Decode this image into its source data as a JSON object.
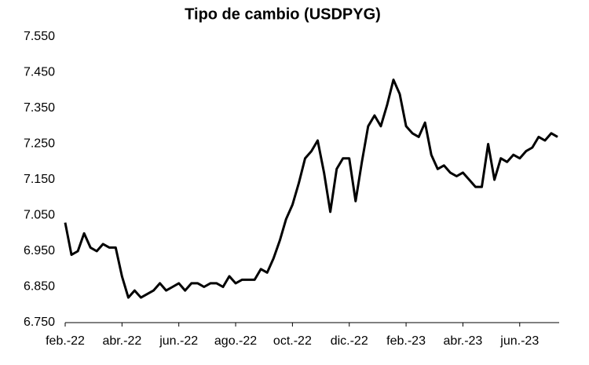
{
  "chart_data": {
    "type": "line",
    "title": "Tipo de cambio (USDPYG)",
    "categories": [
      "feb.-22",
      null,
      null,
      null,
      null,
      null,
      null,
      null,
      null,
      "abr.-22",
      null,
      null,
      null,
      null,
      null,
      null,
      null,
      null,
      "jun.-22",
      null,
      null,
      null,
      null,
      null,
      null,
      null,
      null,
      "ago.-22",
      null,
      null,
      null,
      null,
      null,
      null,
      null,
      null,
      "oct.-22",
      null,
      null,
      null,
      null,
      null,
      null,
      null,
      null,
      "dic.-22",
      null,
      null,
      null,
      null,
      null,
      null,
      null,
      null,
      "feb.-23",
      null,
      null,
      null,
      null,
      null,
      null,
      null,
      null,
      "abr.-23",
      null,
      null,
      null,
      null,
      null,
      null,
      null,
      null,
      "jun.-23",
      null,
      null,
      null,
      null,
      null,
      null
    ],
    "series": [
      {
        "color": "#000000",
        "values": [
          7030,
          6940,
          6950,
          7000,
          6960,
          6950,
          6970,
          6960,
          6960,
          6880,
          6820,
          6840,
          6820,
          6830,
          6840,
          6860,
          6840,
          6850,
          6860,
          6840,
          6860,
          6860,
          6850,
          6860,
          6860,
          6850,
          6880,
          6860,
          6870,
          6870,
          6870,
          6900,
          6890,
          6930,
          6980,
          7040,
          7080,
          7140,
          7210,
          7230,
          7260,
          7170,
          7060,
          7180,
          7210,
          7210,
          7090,
          7200,
          7300,
          7330,
          7300,
          7360,
          7430,
          7390,
          7300,
          7280,
          7270,
          7310,
          7220,
          7180,
          7190,
          7170,
          7160,
          7170,
          7150,
          7130,
          7130,
          7250,
          7150,
          7210,
          7200,
          7220,
          7210,
          7230,
          7240,
          7270,
          7260,
          7280,
          7270
        ]
      }
    ],
    "ylim": [
      6750,
      7550
    ],
    "yticks": [
      {
        "value": 6750,
        "label": "6.750"
      },
      {
        "value": 6850,
        "label": "6.850"
      },
      {
        "value": 6950,
        "label": "6.950"
      },
      {
        "value": 7050,
        "label": "7.050"
      },
      {
        "value": 7150,
        "label": "7.150"
      },
      {
        "value": 7250,
        "label": "7.250"
      },
      {
        "value": 7350,
        "label": "7.350"
      },
      {
        "value": 7450,
        "label": "7.450"
      },
      {
        "value": 7550,
        "label": "7.550"
      }
    ],
    "grid": false
  }
}
